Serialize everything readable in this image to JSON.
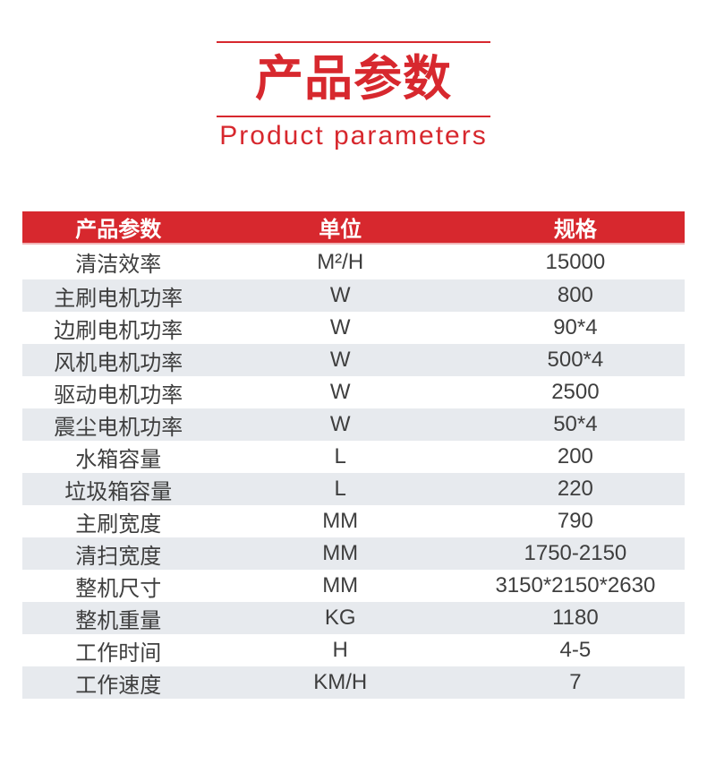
{
  "header": {
    "title": "产品参数",
    "subtitle": "Product parameters"
  },
  "colors": {
    "accent_red": "#d7282e",
    "header_bg": "#d7282e",
    "header_text": "#ffffff",
    "alt_row_bg": "#e7eaee",
    "body_text": "#3e3e3e"
  },
  "table": {
    "headers": [
      "产品参数",
      "单位",
      "规格"
    ],
    "rows": [
      [
        "清洁效率",
        "M²/H",
        "15000"
      ],
      [
        "主刷电机功率",
        "W",
        "800"
      ],
      [
        "边刷电机功率",
        "W",
        "90*4"
      ],
      [
        "风机电机功率",
        "W",
        "500*4"
      ],
      [
        "驱动电机功率",
        "W",
        "2500"
      ],
      [
        "震尘电机功率",
        "W",
        "50*4"
      ],
      [
        "水箱容量",
        "L",
        "200"
      ],
      [
        "垃圾箱容量",
        "L",
        "220"
      ],
      [
        "主刷宽度",
        "MM",
        "790"
      ],
      [
        "清扫宽度",
        "MM",
        "1750-2150"
      ],
      [
        "整机尺寸",
        "MM",
        "3150*2150*2630"
      ],
      [
        "整机重量",
        "KG",
        "1180"
      ],
      [
        "工作时间",
        "H",
        "4-5"
      ],
      [
        "工作速度",
        "KM/H",
        "7"
      ]
    ]
  }
}
